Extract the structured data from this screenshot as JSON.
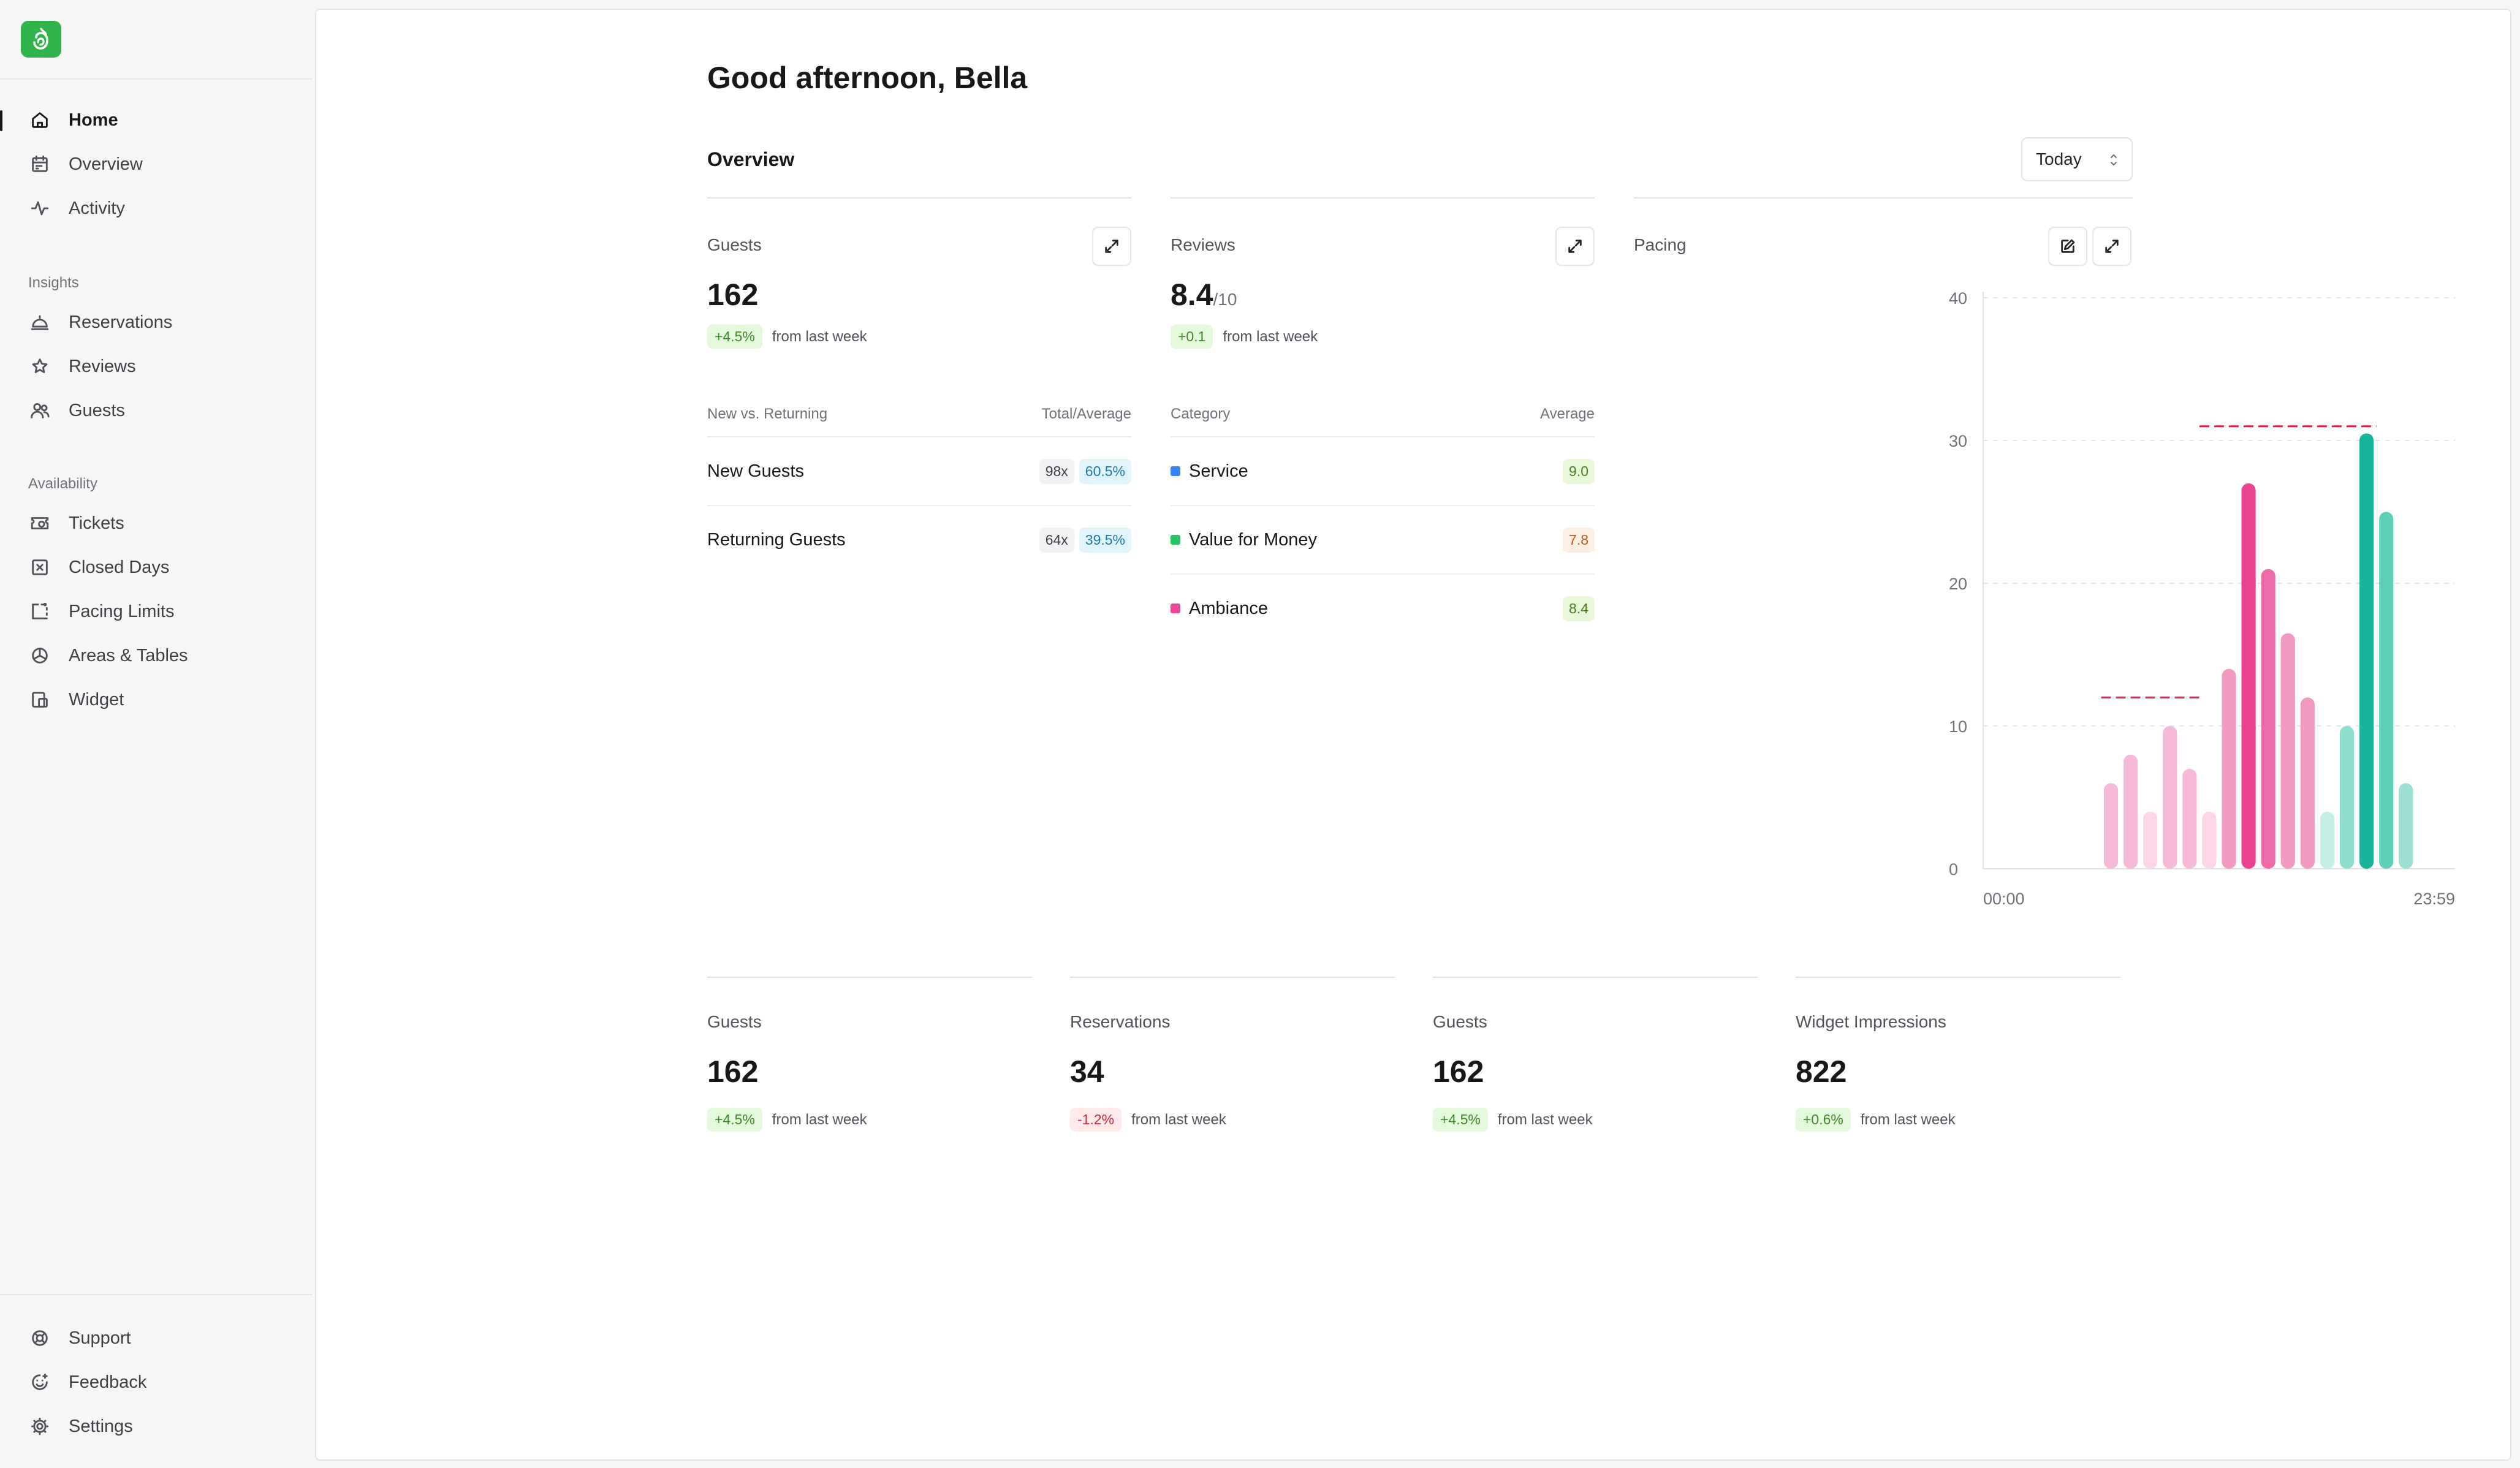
{
  "sidebar": {
    "nav_main": [
      {
        "label": "Home",
        "icon": "home-icon"
      },
      {
        "label": "Overview",
        "icon": "calendar-icon"
      },
      {
        "label": "Activity",
        "icon": "activity-icon"
      }
    ],
    "insights_title": "Insights",
    "insights": [
      {
        "label": "Reservations",
        "icon": "cloche-icon"
      },
      {
        "label": "Reviews",
        "icon": "star-icon"
      },
      {
        "label": "Guests",
        "icon": "users-icon"
      }
    ],
    "availability_title": "Availability",
    "availability": [
      {
        "label": "Tickets",
        "icon": "ticket-icon"
      },
      {
        "label": "Closed Days",
        "icon": "calendar-x-icon"
      },
      {
        "label": "Pacing Limits",
        "icon": "pacing-icon"
      },
      {
        "label": "Areas & Tables",
        "icon": "areas-icon"
      },
      {
        "label": "Widget",
        "icon": "widget-icon"
      }
    ],
    "footer": [
      {
        "label": "Support",
        "icon": "lifebuoy-icon"
      },
      {
        "label": "Feedback",
        "icon": "smile-icon"
      },
      {
        "label": "Settings",
        "icon": "gear-icon"
      }
    ]
  },
  "main": {
    "greeting": "Good afternoon, Bella",
    "overview_title": "Overview",
    "period": "Today",
    "guests_card": {
      "label": "Guests",
      "value": "162",
      "delta": "+4.5%",
      "delta_text": "from last week",
      "table_head_left": "New vs. Returning",
      "table_head_right": "Total/Average",
      "rows": [
        {
          "name": "New Guests",
          "count": "98x",
          "pct": "60.5%"
        },
        {
          "name": "Returning Guests",
          "count": "64x",
          "pct": "39.5%"
        }
      ]
    },
    "reviews_card": {
      "label": "Reviews",
      "value": "8.4",
      "value_suffix": "/10",
      "delta": "+0.1",
      "delta_text": "from last week",
      "table_head_left": "Category",
      "table_head_right": "Average",
      "rows": [
        {
          "name": "Service",
          "score": "9.0",
          "color": "#3b82f6"
        },
        {
          "name": "Value for Money",
          "score": "7.8",
          "color": "#22c55e"
        },
        {
          "name": "Ambiance",
          "score": "8.4",
          "color": "#ec4899"
        }
      ]
    },
    "pacing_card": {
      "label": "Pacing"
    },
    "kpis": [
      {
        "label": "Guests",
        "value": "162",
        "delta": "+4.5%",
        "delta_dir": "up",
        "delta_text": "from last week"
      },
      {
        "label": "Reservations",
        "value": "34",
        "delta": "-1.2%",
        "delta_dir": "down",
        "delta_text": "from last week"
      },
      {
        "label": "Guests",
        "value": "162",
        "delta": "+4.5%",
        "delta_dir": "up",
        "delta_text": "from last week"
      },
      {
        "label": "Widget Impressions",
        "value": "822",
        "delta": "+0.6%",
        "delta_dir": "up",
        "delta_text": "from last week"
      }
    ]
  },
  "chart_data": {
    "type": "bar",
    "title": "Pacing",
    "xlabel": "",
    "ylabel": "",
    "x_tick_labels": [
      "00:00",
      "23:59"
    ],
    "yticks": [
      0,
      10,
      20,
      30,
      40
    ],
    "ylim": [
      0,
      40
    ],
    "grid": true,
    "slots": 24,
    "bars": [
      {
        "slot": 6,
        "value": 6,
        "color": "#f5b8d6"
      },
      {
        "slot": 7,
        "value": 8,
        "color": "#f5b8d6"
      },
      {
        "slot": 8,
        "value": 4,
        "color": "#fbd7e8"
      },
      {
        "slot": 9,
        "value": 10,
        "color": "#f5b8d6"
      },
      {
        "slot": 10,
        "value": 7,
        "color": "#f5b8d6"
      },
      {
        "slot": 11,
        "value": 4,
        "color": "#fbd7e8"
      },
      {
        "slot": 12,
        "value": 14,
        "color": "#f29ac2"
      },
      {
        "slot": 13,
        "value": 27,
        "color": "#e9438f"
      },
      {
        "slot": 14,
        "value": 21,
        "color": "#ee6aa8"
      },
      {
        "slot": 15,
        "value": 16.5,
        "color": "#f29ac2"
      },
      {
        "slot": 16,
        "value": 12,
        "color": "#f29ac2"
      },
      {
        "slot": 17,
        "value": 4,
        "color": "#c5eee5"
      },
      {
        "slot": 18,
        "value": 10,
        "color": "#8edccb"
      },
      {
        "slot": 19,
        "value": 30.5,
        "color": "#17b39b"
      },
      {
        "slot": 20,
        "value": 25,
        "color": "#5fcfba"
      },
      {
        "slot": 21,
        "value": 6,
        "color": "#9be0d1"
      }
    ],
    "pacing_limits": [
      {
        "from_slot": 6,
        "to_slot": 11,
        "value": 12
      },
      {
        "from_slot": 11,
        "to_slot": 20,
        "value": 31
      }
    ]
  }
}
